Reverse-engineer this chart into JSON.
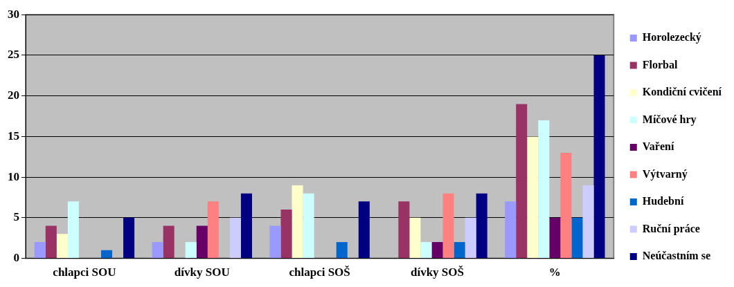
{
  "chart_data": {
    "type": "bar",
    "categories": [
      "chlapci SOU",
      "dívky SOU",
      "chlapci SOŠ",
      "dívky SOŠ",
      "%"
    ],
    "series": [
      {
        "name": "Horolezecký",
        "color": "#9999ff",
        "values": [
          2,
          2,
          4,
          0,
          7
        ]
      },
      {
        "name": "Florbal",
        "color": "#993366",
        "values": [
          4,
          4,
          6,
          7,
          19
        ]
      },
      {
        "name": "Kondiční cvičení",
        "color": "#ffffcc",
        "values": [
          3,
          0,
          9,
          5,
          15
        ]
      },
      {
        "name": "Míčové hry",
        "color": "#ccffff",
        "values": [
          7,
          2,
          8,
          2,
          17
        ]
      },
      {
        "name": "Vaření",
        "color": "#660066",
        "values": [
          0,
          4,
          0,
          2,
          5
        ]
      },
      {
        "name": "Výtvarný",
        "color": "#ff8080",
        "values": [
          0,
          7,
          0,
          8,
          13
        ]
      },
      {
        "name": "Hudební",
        "color": "#0066cc",
        "values": [
          1,
          0,
          2,
          2,
          5
        ]
      },
      {
        "name": "Ruční práce",
        "color": "#ccccff",
        "values": [
          0,
          5,
          0,
          5,
          9
        ]
      },
      {
        "name": "Neúčastním se",
        "color": "#000080",
        "values": [
          5,
          8,
          7,
          8,
          25
        ]
      }
    ],
    "ylim": [
      0,
      30
    ],
    "yticks": [
      0,
      5,
      10,
      15,
      20,
      25,
      30
    ],
    "grid": "y",
    "legend": "right"
  }
}
